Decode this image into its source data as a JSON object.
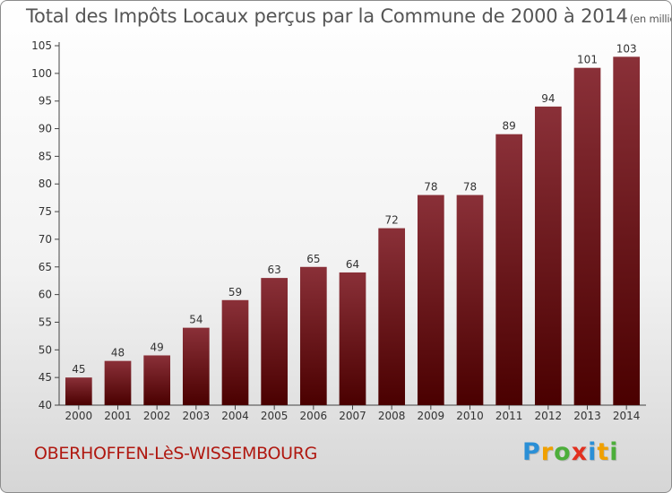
{
  "header": {
    "title": "Total des Impôts Locaux perçus par la Commune de 2000 à 2014",
    "unit": "(en milliers d'€)"
  },
  "footer": {
    "commune": "OBERHOFFEN-LèS-WISSEMBOURG",
    "brand_letters": [
      "P",
      "r",
      "o",
      "x",
      "i",
      "t",
      "i"
    ],
    "brand_colors": [
      "#2a8fd6",
      "#f0a000",
      "#4cae3a",
      "#e2301f",
      "#2a8fd6",
      "#f0a000",
      "#4cae3a"
    ]
  },
  "chart_data": {
    "type": "bar",
    "title": "Total des Impôts Locaux perçus par la Commune de 2000 à 2014",
    "unit": "(en milliers d'€)",
    "categories": [
      "2000",
      "2001",
      "2002",
      "2003",
      "2004",
      "2005",
      "2006",
      "2007",
      "2008",
      "2009",
      "2010",
      "2011",
      "2012",
      "2013",
      "2014"
    ],
    "values": [
      45,
      48,
      49,
      54,
      59,
      63,
      65,
      64,
      72,
      78,
      78,
      89,
      94,
      101,
      103
    ],
    "data_labels": [
      "45",
      "48",
      "49",
      "54",
      "59",
      "63",
      "65",
      "64",
      "72",
      "78",
      "78",
      "89",
      "94",
      "101",
      "103"
    ],
    "ylim": [
      40,
      105
    ],
    "yticks": [
      40,
      45,
      50,
      55,
      60,
      65,
      70,
      75,
      80,
      85,
      90,
      95,
      100,
      105
    ],
    "grid": false,
    "bar_color_top": "#8a3038",
    "bar_color_bottom": "#4a0000"
  }
}
